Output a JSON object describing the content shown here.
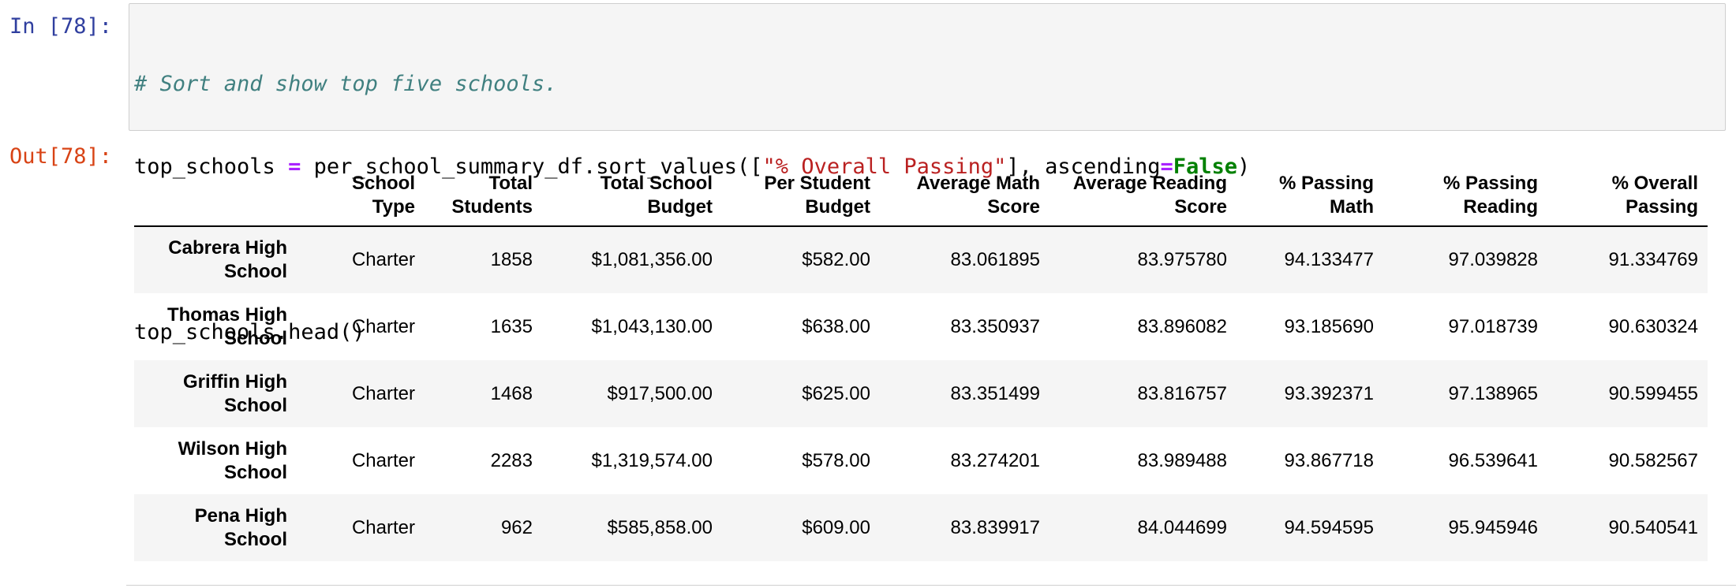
{
  "cell": {
    "in_prompt": "In [78]:",
    "out_prompt": "Out[78]:"
  },
  "code": {
    "comment": "# Sort and show top five schools.",
    "line2_var": "top_schools ",
    "line2_op": "=",
    "line2_mid": " per_school_summary_df.sort_values([",
    "line2_str": "\"% Overall Passing\"",
    "line2_after": "], ascending",
    "line2_op2": "=",
    "line2_kw": "False",
    "line2_end": ")",
    "line4": "top_schools.head()"
  },
  "table": {
    "columns": [
      [
        "School",
        "Type"
      ],
      [
        "Total",
        "Students"
      ],
      [
        "Total School",
        "Budget"
      ],
      [
        "Per Student",
        "Budget"
      ],
      [
        "Average Math",
        "Score"
      ],
      [
        "Average Reading",
        "Score"
      ],
      [
        "% Passing",
        "Math"
      ],
      [
        "% Passing",
        "Reading"
      ],
      [
        "% Overall",
        "Passing"
      ]
    ],
    "rows": [
      {
        "index": [
          "Cabrera High",
          "School"
        ],
        "cells": [
          "Charter",
          "1858",
          "$1,081,356.00",
          "$582.00",
          "83.061895",
          "83.975780",
          "94.133477",
          "97.039828",
          "91.334769"
        ]
      },
      {
        "index": [
          "Thomas High",
          "School"
        ],
        "cells": [
          "Charter",
          "1635",
          "$1,043,130.00",
          "$638.00",
          "83.350937",
          "83.896082",
          "93.185690",
          "97.018739",
          "90.630324"
        ]
      },
      {
        "index": [
          "Griffin High",
          "School"
        ],
        "cells": [
          "Charter",
          "1468",
          "$917,500.00",
          "$625.00",
          "83.351499",
          "83.816757",
          "93.392371",
          "97.138965",
          "90.599455"
        ]
      },
      {
        "index": [
          "Wilson High",
          "School"
        ],
        "cells": [
          "Charter",
          "2283",
          "$1,319,574.00",
          "$578.00",
          "83.274201",
          "83.989488",
          "93.867718",
          "96.539641",
          "90.582567"
        ]
      },
      {
        "index": [
          "Pena High",
          "School"
        ],
        "cells": [
          "Charter",
          "962",
          "$585,858.00",
          "$609.00",
          "83.839917",
          "84.044699",
          "94.594595",
          "95.945946",
          "90.540541"
        ]
      }
    ]
  }
}
